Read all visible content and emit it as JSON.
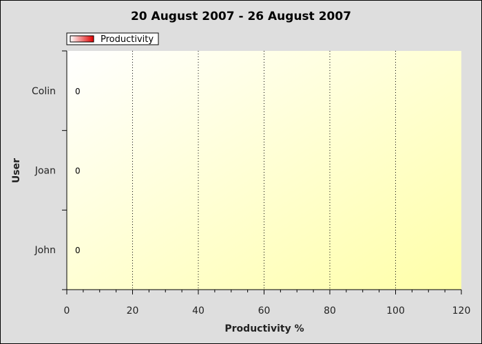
{
  "chart_data": {
    "type": "bar",
    "orientation": "horizontal",
    "title": "20 August 2007 - 26 August 2007",
    "xlabel": "Productivity %",
    "ylabel": "User",
    "categories": [
      "Colin",
      "Joan",
      "John"
    ],
    "series": [
      {
        "name": "Productivity",
        "values": [
          0,
          0,
          0
        ],
        "color": "#e00000"
      }
    ],
    "data_labels": [
      "0",
      "0",
      "0"
    ],
    "xlim": [
      0,
      120
    ],
    "xticks": [
      0,
      20,
      40,
      60,
      80,
      100,
      120
    ],
    "grid": "vertical dotted",
    "legend_position": "top-left"
  }
}
